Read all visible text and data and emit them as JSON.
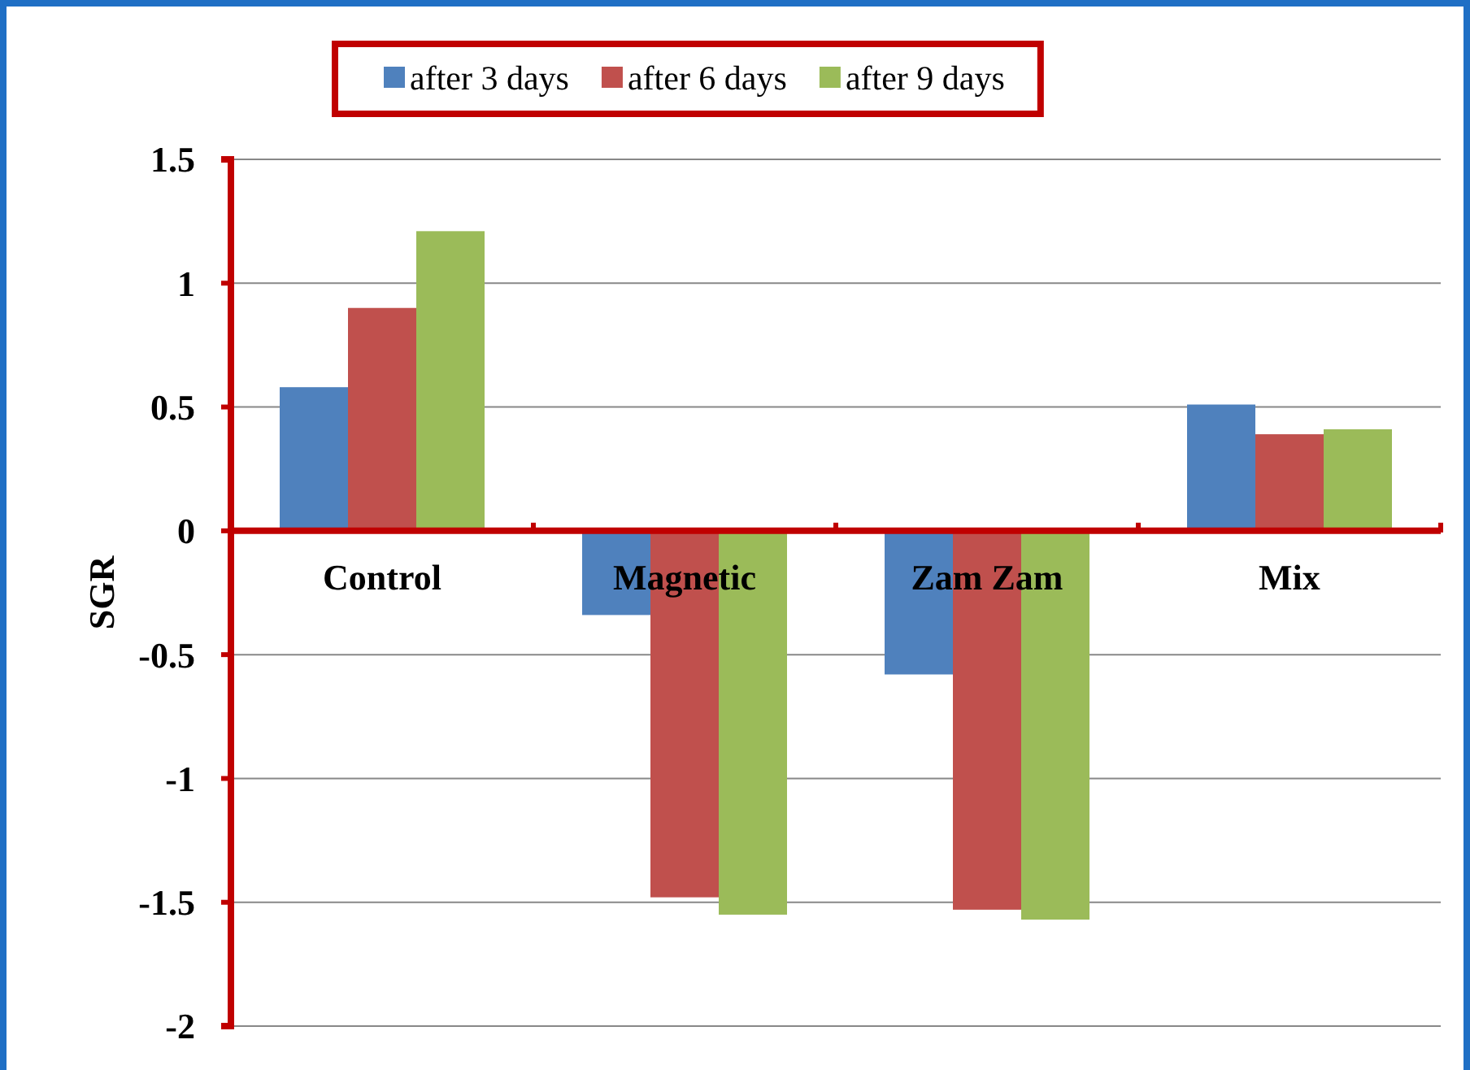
{
  "chart_data": {
    "type": "bar",
    "ylabel": "SGR",
    "categories": [
      "Control",
      "Magnetic",
      "Zam Zam",
      "Mix"
    ],
    "series": [
      {
        "name": "after 3 days",
        "color": "#4f81bd",
        "values": [
          0.58,
          -0.34,
          -0.58,
          0.51
        ]
      },
      {
        "name": "after 6 days",
        "color": "#c0504d",
        "values": [
          0.9,
          -1.48,
          -1.53,
          0.39
        ]
      },
      {
        "name": "after 9 days",
        "color": "#9bbb59",
        "values": [
          1.21,
          -1.55,
          -1.57,
          0.41
        ]
      }
    ],
    "ylim": [
      -2,
      1.5
    ],
    "yticks": [
      -2,
      -1.5,
      -1,
      -0.5,
      0,
      0.5,
      1,
      1.5
    ],
    "grid": "y",
    "legend": "top"
  }
}
